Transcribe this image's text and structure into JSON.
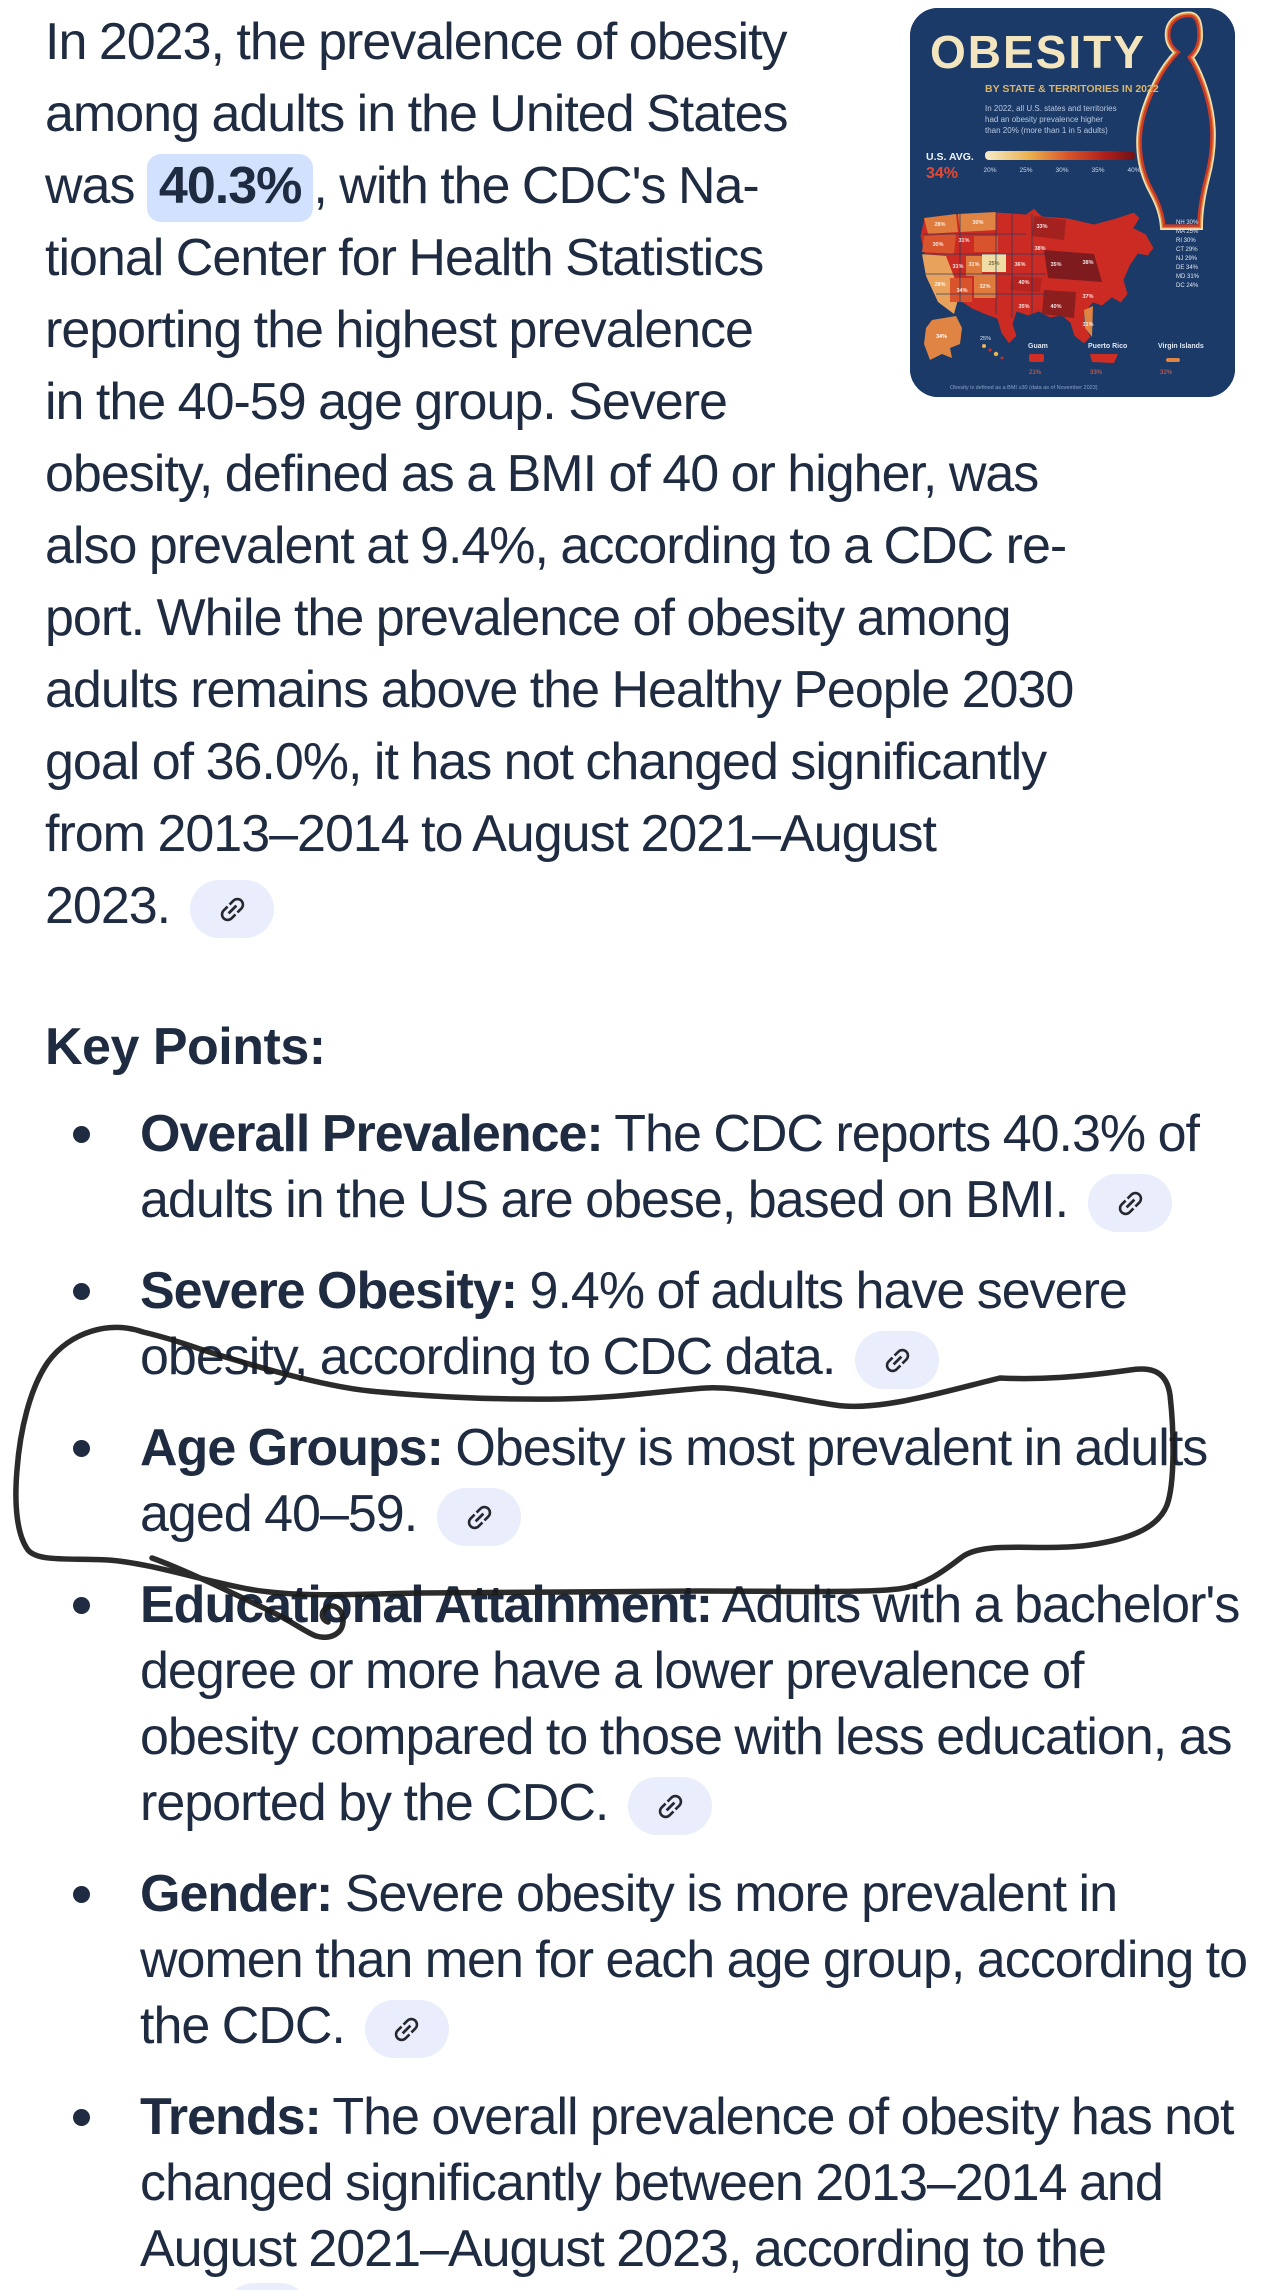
{
  "colors": {
    "text": "#1e2b40",
    "highlight_bg": "#d2e1fd",
    "chip_bg": "#e9edfc",
    "chip_icon": "#26282e",
    "ink": "#1b1b1b",
    "infographic_bg": "#1b3a68",
    "infographic_title": "#f3e5bd",
    "infographic_red": "#cb2b22"
  },
  "intro": {
    "lines": [
      {
        "text": "In 2023, the prevalence of obesity"
      },
      {
        "text": "among adults in the United States"
      },
      {
        "parts": [
          {
            "t": "was "
          },
          {
            "t": "40.3%",
            "highlight": true
          },
          {
            "t": ", with the CDC's Na-"
          }
        ]
      },
      {
        "text": "tional Center for Health Statistics"
      },
      {
        "text": "reporting the highest prevalence"
      },
      {
        "text": "in the 40-59 age group. Severe"
      },
      {
        "text": "obesity, defined as a BMI of 40 or higher, was"
      },
      {
        "text": "also prevalent at 9.4%, according to a CDC re-"
      },
      {
        "text": "port. While the prevalence of obesity among"
      },
      {
        "text": "adults remains above the Healthy People 2030"
      },
      {
        "text": "goal of 36.0%, it has not changed significantly"
      },
      {
        "text": "from 2013–2014 to August 2021–August"
      },
      {
        "text": "2023.",
        "chip": true
      }
    ]
  },
  "key_points": {
    "heading": "Key Points:",
    "bullets": [
      {
        "lead": "Overall Prevalence:",
        "lines": [
          "The CDC reports 40.3% of",
          "adults in the US are obese, based on BMI."
        ],
        "chip": "inline"
      },
      {
        "lead": "Severe Obesity:",
        "lines": [
          "9.4% of adults have severe",
          "obesity, according to CDC data."
        ],
        "chip": "inline"
      },
      {
        "lead": "Age Groups:",
        "lines": [
          "Obesity is most prevalent in adults",
          "aged 40–59."
        ],
        "chip": "inline"
      },
      {
        "lead": "Educational Attainment:",
        "lines": [
          "Adults with a bachelor's",
          "degree or more have a lower prevalence of",
          "obesity compared to those with less education, as",
          "reported by the CDC."
        ],
        "chip": "inline"
      },
      {
        "lead": "Gender:",
        "lines": [
          "Severe obesity is more prevalent in",
          "women than men for each age group, according to",
          "the CDC."
        ],
        "chip": "inline"
      },
      {
        "lead": "Trends:",
        "lines": [
          "The overall prevalence of obesity has not",
          "changed significantly between 2013–2014 and",
          "August 2021–August 2023, according to the"
        ],
        "chip": "cut"
      }
    ]
  },
  "infographic": {
    "title": "OBESITY",
    "subtitle": "BY STATE & TERRITORIES IN 2022",
    "note_lines": [
      "In 2022, all U.S. states and territories",
      "had an obesity prevalence higher",
      "than 20% (more than 1 in 5 adults)"
    ],
    "us_avg_label": "U.S. AVG.",
    "us_avg_value": "34%",
    "legend_ticks": [
      "20%",
      "25%",
      "30%",
      "35%",
      "40%"
    ],
    "state_labels": [
      "28%",
      "30%",
      "30%",
      "31%",
      "28%",
      "31%",
      "31%",
      "25%",
      "34%",
      "32%",
      "35%",
      "36%",
      "40%",
      "33%",
      "38%",
      "35%",
      "38%",
      "40%",
      "37%",
      "31%"
    ],
    "ne_states": [
      "NH 30%",
      "MA 25%",
      "RI 30%",
      "CT 29%",
      "NJ 29%",
      "DE 34%",
      "MD 31%",
      "DC 24%"
    ],
    "territories": {
      "ak_value": "34%",
      "hi_value": "25%",
      "guam": "Guam",
      "guam_value": "21%",
      "pr": "Puerto Rico",
      "pr_value": "33%",
      "vi": "Virgin Islands",
      "vi_value": "32%"
    },
    "footnote": "Obesity is defined as a BMI ≥30 (data as of November 2023)"
  }
}
